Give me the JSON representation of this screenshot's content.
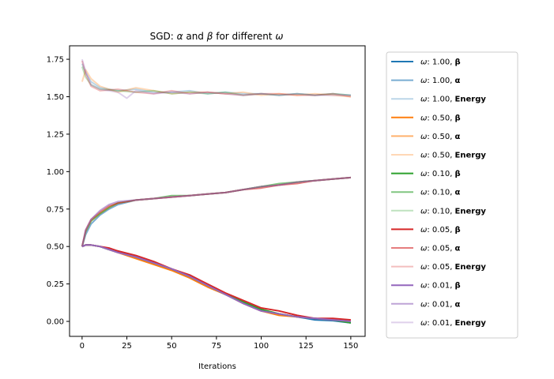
{
  "chart_data": {
    "type": "line",
    "title": "SGD: α and β for different ω",
    "title_parts": {
      "prefix": "SGD: ",
      "a": "α",
      "mid1": " and ",
      "b": "β",
      "mid2": " for different ",
      "w": "ω"
    },
    "xlabel": "Iterations",
    "ylabel": "",
    "xlim": [
      -7,
      158
    ],
    "ylim": [
      -0.1,
      1.84
    ],
    "xticks": [
      0,
      25,
      50,
      75,
      100,
      125,
      150
    ],
    "yticks": [
      0.0,
      0.25,
      0.5,
      0.75,
      1.0,
      1.25,
      1.5,
      1.75
    ],
    "xtick_labels": [
      "0",
      "25",
      "50",
      "75",
      "100",
      "125",
      "150"
    ],
    "ytick_labels": [
      "0.00",
      "0.25",
      "0.50",
      "0.75",
      "1.00",
      "1.25",
      "1.50",
      "1.75"
    ],
    "grid": false,
    "legend_position": "outside-right",
    "colors": {
      "w1.00": "#1f77b4",
      "w0.50": "#ff7f0e",
      "w0.10": "#2ca02c",
      "w0.05": "#d62728",
      "w0.01": "#9467bd"
    },
    "legend": [
      {
        "omega": "1.00",
        "label": "β",
        "opacity": 1.0,
        "color": "#1f77b4"
      },
      {
        "omega": "1.00",
        "label": "α",
        "opacity": 0.6,
        "color": "#1f77b4"
      },
      {
        "omega": "1.00",
        "label": "Energy",
        "opacity": 0.3,
        "color": "#1f77b4"
      },
      {
        "omega": "0.50",
        "label": "β",
        "opacity": 1.0,
        "color": "#ff7f0e"
      },
      {
        "omega": "0.50",
        "label": "α",
        "opacity": 0.6,
        "color": "#ff7f0e"
      },
      {
        "omega": "0.50",
        "label": "Energy",
        "opacity": 0.3,
        "color": "#ff7f0e"
      },
      {
        "omega": "0.10",
        "label": "β",
        "opacity": 1.0,
        "color": "#2ca02c"
      },
      {
        "omega": "0.10",
        "label": "α",
        "opacity": 0.6,
        "color": "#2ca02c"
      },
      {
        "omega": "0.10",
        "label": "Energy",
        "opacity": 0.3,
        "color": "#2ca02c"
      },
      {
        "omega": "0.05",
        "label": "β",
        "opacity": 1.0,
        "color": "#d62728"
      },
      {
        "omega": "0.05",
        "label": "α",
        "opacity": 0.6,
        "color": "#d62728"
      },
      {
        "omega": "0.05",
        "label": "Energy",
        "opacity": 0.3,
        "color": "#d62728"
      },
      {
        "omega": "0.01",
        "label": "β",
        "opacity": 1.0,
        "color": "#9467bd"
      },
      {
        "omega": "0.01",
        "label": "α",
        "opacity": 0.6,
        "color": "#9467bd"
      },
      {
        "omega": "0.01",
        "label": "Energy",
        "opacity": 0.3,
        "color": "#9467bd"
      }
    ],
    "series": [
      {
        "omega": "1.00",
        "label": "β",
        "x": [
          0,
          2,
          5,
          10,
          15,
          20,
          30,
          40,
          50,
          60,
          70,
          80,
          90,
          100,
          110,
          120,
          125,
          130,
          140,
          150
        ],
        "values": [
          0.5,
          0.51,
          0.51,
          0.5,
          0.48,
          0.46,
          0.43,
          0.39,
          0.35,
          0.3,
          0.24,
          0.18,
          0.12,
          0.07,
          0.05,
          0.03,
          0.02,
          0.01,
          0.005,
          -0.01
        ]
      },
      {
        "omega": "1.00",
        "label": "α",
        "x": [
          0,
          2,
          5,
          10,
          15,
          20,
          30,
          40,
          50,
          60,
          70,
          80,
          90,
          100,
          110,
          120,
          130,
          140,
          150
        ],
        "values": [
          0.5,
          0.58,
          0.65,
          0.71,
          0.75,
          0.78,
          0.81,
          0.82,
          0.83,
          0.84,
          0.85,
          0.86,
          0.88,
          0.9,
          0.91,
          0.93,
          0.94,
          0.95,
          0.96
        ]
      },
      {
        "omega": "1.00",
        "label": "Energy",
        "x": [
          0,
          2,
          5,
          10,
          20,
          30,
          40,
          50,
          60,
          70,
          80,
          90,
          100,
          110,
          120,
          130,
          140,
          150
        ],
        "values": [
          1.72,
          1.66,
          1.6,
          1.56,
          1.54,
          1.55,
          1.53,
          1.53,
          1.54,
          1.52,
          1.53,
          1.52,
          1.52,
          1.51,
          1.52,
          1.51,
          1.52,
          1.51
        ]
      },
      {
        "omega": "0.50",
        "label": "β",
        "x": [
          0,
          2,
          5,
          10,
          15,
          20,
          30,
          40,
          50,
          60,
          70,
          80,
          90,
          100,
          110,
          120,
          130,
          140,
          150
        ],
        "values": [
          0.5,
          0.51,
          0.51,
          0.5,
          0.48,
          0.46,
          0.42,
          0.38,
          0.34,
          0.29,
          0.23,
          0.18,
          0.12,
          0.07,
          0.04,
          0.03,
          0.02,
          0.01,
          0.0
        ]
      },
      {
        "omega": "0.50",
        "label": "α",
        "x": [
          0,
          2,
          5,
          10,
          15,
          20,
          30,
          40,
          50,
          60,
          70,
          80,
          90,
          100,
          110,
          120,
          130,
          140,
          150
        ],
        "values": [
          0.5,
          0.6,
          0.67,
          0.72,
          0.76,
          0.79,
          0.81,
          0.82,
          0.83,
          0.84,
          0.85,
          0.86,
          0.88,
          0.9,
          0.91,
          0.93,
          0.94,
          0.95,
          0.96
        ]
      },
      {
        "omega": "0.50",
        "label": "Energy",
        "x": [
          0,
          2,
          5,
          10,
          20,
          30,
          40,
          50,
          60,
          70,
          80,
          90,
          100,
          110,
          120,
          130,
          140,
          150
        ],
        "values": [
          1.6,
          1.68,
          1.62,
          1.57,
          1.53,
          1.56,
          1.54,
          1.52,
          1.53,
          1.53,
          1.52,
          1.53,
          1.51,
          1.52,
          1.51,
          1.52,
          1.51,
          1.5
        ]
      },
      {
        "omega": "0.10",
        "label": "β",
        "x": [
          0,
          2,
          5,
          10,
          15,
          20,
          30,
          40,
          50,
          60,
          70,
          80,
          90,
          100,
          110,
          120,
          130,
          140,
          150
        ],
        "values": [
          0.5,
          0.51,
          0.51,
          0.5,
          0.48,
          0.47,
          0.43,
          0.39,
          0.35,
          0.3,
          0.24,
          0.18,
          0.13,
          0.08,
          0.05,
          0.03,
          0.02,
          0.01,
          -0.01
        ]
      },
      {
        "omega": "0.10",
        "label": "α",
        "x": [
          0,
          2,
          5,
          10,
          15,
          20,
          30,
          40,
          50,
          60,
          70,
          80,
          90,
          100,
          110,
          120,
          130,
          140,
          150
        ],
        "values": [
          0.5,
          0.6,
          0.67,
          0.72,
          0.76,
          0.79,
          0.81,
          0.82,
          0.84,
          0.84,
          0.85,
          0.86,
          0.88,
          0.9,
          0.92,
          0.93,
          0.94,
          0.95,
          0.96
        ]
      },
      {
        "omega": "0.10",
        "label": "Energy",
        "x": [
          0,
          2,
          5,
          10,
          20,
          30,
          40,
          50,
          60,
          70,
          80,
          90,
          100,
          110,
          120,
          130,
          140,
          150
        ],
        "values": [
          1.7,
          1.63,
          1.58,
          1.55,
          1.54,
          1.53,
          1.54,
          1.52,
          1.53,
          1.52,
          1.53,
          1.51,
          1.52,
          1.51,
          1.52,
          1.51,
          1.52,
          1.51
        ]
      },
      {
        "omega": "0.05",
        "label": "β",
        "x": [
          0,
          2,
          5,
          10,
          15,
          20,
          30,
          40,
          50,
          60,
          70,
          80,
          90,
          100,
          110,
          120,
          130,
          140,
          150
        ],
        "values": [
          0.5,
          0.51,
          0.51,
          0.5,
          0.49,
          0.47,
          0.44,
          0.4,
          0.35,
          0.31,
          0.25,
          0.19,
          0.14,
          0.09,
          0.07,
          0.04,
          0.02,
          0.02,
          0.01
        ]
      },
      {
        "omega": "0.05",
        "label": "α",
        "x": [
          0,
          2,
          5,
          10,
          15,
          20,
          30,
          40,
          50,
          60,
          70,
          80,
          90,
          100,
          110,
          120,
          130,
          140,
          150
        ],
        "values": [
          0.5,
          0.61,
          0.68,
          0.73,
          0.77,
          0.79,
          0.81,
          0.82,
          0.83,
          0.84,
          0.85,
          0.86,
          0.88,
          0.89,
          0.91,
          0.92,
          0.94,
          0.95,
          0.96
        ]
      },
      {
        "omega": "0.05",
        "label": "Energy",
        "x": [
          0,
          2,
          5,
          10,
          20,
          30,
          40,
          50,
          60,
          70,
          80,
          90,
          100,
          110,
          120,
          130,
          140,
          150
        ],
        "values": [
          1.74,
          1.65,
          1.57,
          1.54,
          1.55,
          1.53,
          1.52,
          1.54,
          1.52,
          1.53,
          1.52,
          1.51,
          1.52,
          1.52,
          1.51,
          1.51,
          1.52,
          1.5
        ]
      },
      {
        "omega": "0.01",
        "label": "β",
        "x": [
          0,
          2,
          5,
          10,
          15,
          20,
          30,
          40,
          50,
          60,
          70,
          80,
          90,
          100,
          110,
          120,
          130,
          140,
          150
        ],
        "values": [
          0.5,
          0.51,
          0.51,
          0.5,
          0.48,
          0.46,
          0.43,
          0.39,
          0.35,
          0.3,
          0.24,
          0.18,
          0.12,
          0.07,
          0.05,
          0.03,
          0.02,
          0.01,
          0.0
        ]
      },
      {
        "omega": "0.01",
        "label": "α",
        "x": [
          0,
          2,
          5,
          10,
          15,
          20,
          30,
          40,
          50,
          60,
          70,
          80,
          90,
          100,
          110,
          120,
          130,
          140,
          150
        ],
        "values": [
          0.5,
          0.61,
          0.68,
          0.74,
          0.78,
          0.8,
          0.81,
          0.82,
          0.83,
          0.84,
          0.85,
          0.86,
          0.88,
          0.9,
          0.91,
          0.93,
          0.94,
          0.95,
          0.96
        ]
      },
      {
        "omega": "0.01",
        "label": "Energy",
        "x": [
          0,
          2,
          5,
          10,
          20,
          25,
          30,
          40,
          50,
          60,
          70,
          80,
          90,
          100,
          110,
          120,
          130,
          140,
          150
        ],
        "values": [
          1.75,
          1.67,
          1.58,
          1.55,
          1.53,
          1.49,
          1.54,
          1.52,
          1.53,
          1.52,
          1.53,
          1.52,
          1.51,
          1.52,
          1.51,
          1.52,
          1.51,
          1.51,
          1.51
        ]
      }
    ]
  }
}
